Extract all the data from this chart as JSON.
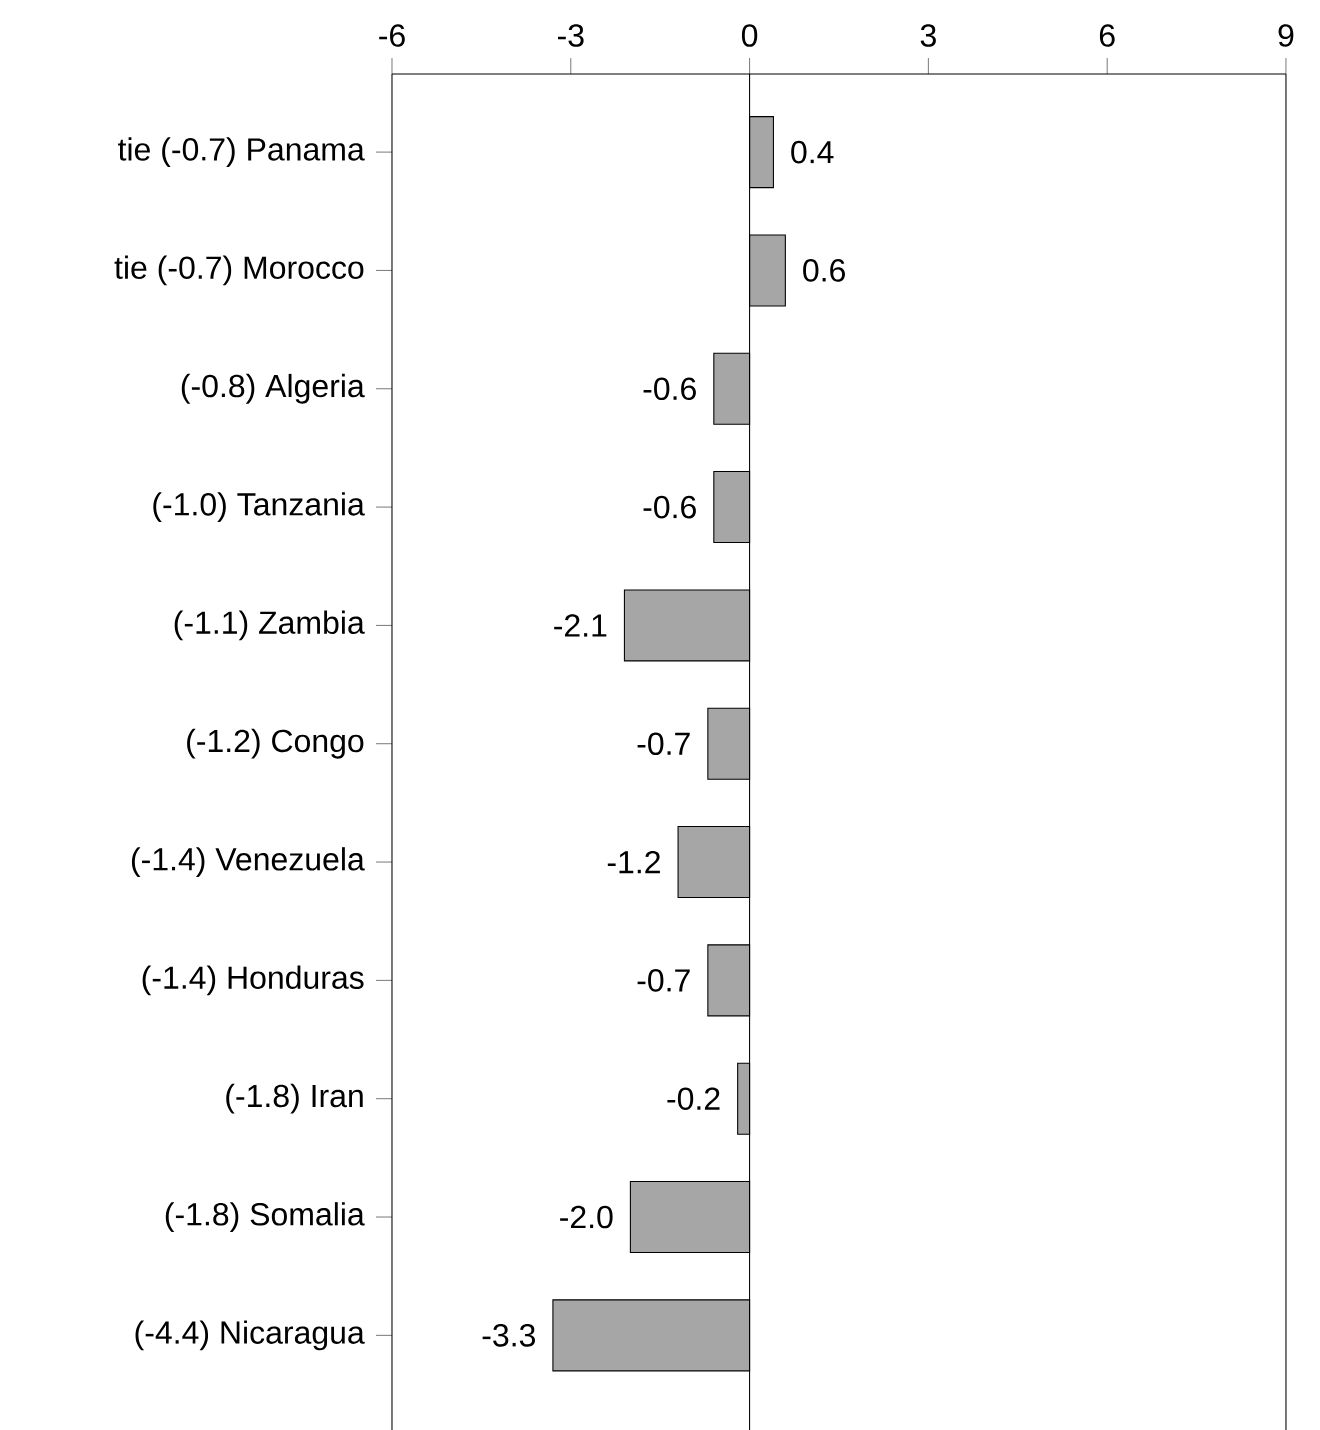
{
  "chart_data": {
    "type": "bar",
    "orientation": "horizontal",
    "categories": [
      "tie (-0.7) Panama",
      "tie (-0.7) Morocco",
      "(-0.8) Algeria",
      "(-1.0) Tanzania",
      "(-1.1) Zambia",
      "(-1.2) Congo",
      "(-1.4) Venezuela",
      "(-1.4) Honduras",
      "(-1.8) Iran",
      "(-1.8) Somalia",
      "(-4.4) Nicaragua"
    ],
    "values": [
      0.4,
      0.6,
      -0.6,
      -0.6,
      -2.1,
      -0.7,
      -1.2,
      -0.7,
      -0.2,
      -2.0,
      -3.3
    ],
    "value_labels": [
      "0.4",
      "0.6",
      "-0.6",
      "-0.6",
      "-2.1",
      "-0.7",
      "-1.2",
      "-0.7",
      "-0.2",
      "-2.0",
      "-3.3"
    ],
    "color": "#a6a6a6",
    "xlim": [
      -6,
      9
    ],
    "xticks": [
      -6,
      -3,
      0,
      3,
      6,
      9
    ],
    "ref_lines": [
      {
        "axis": "x",
        "value": 0
      }
    ]
  }
}
